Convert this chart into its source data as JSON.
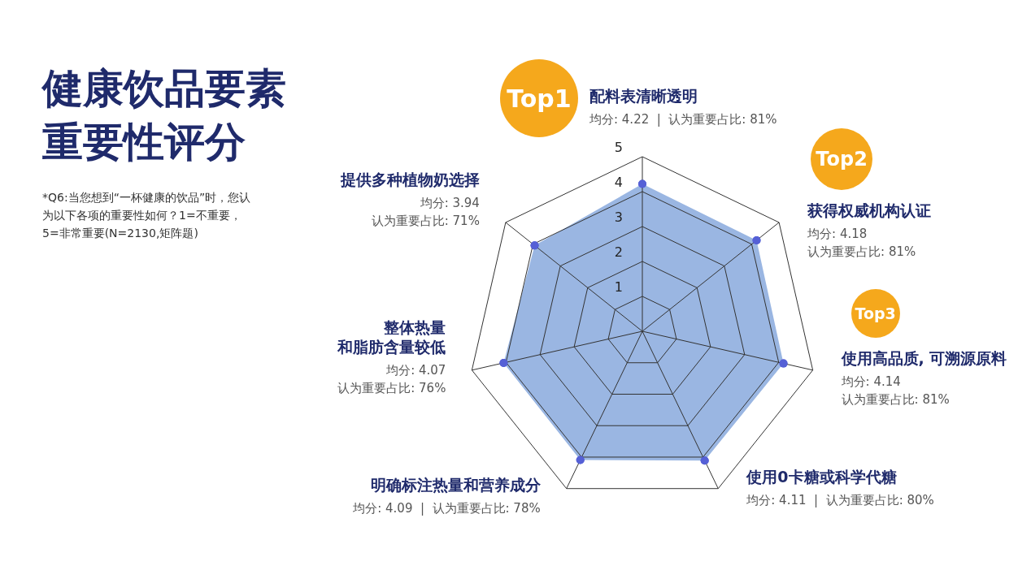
{
  "chart_data": {
    "type": "radar",
    "title": "健康饮品要素重要性评分",
    "categories": [
      "配料表清晰透明",
      "获得权威机构认证",
      "使用高品质, 可溯源原料",
      "使用0卡糖或科学代糖",
      "明确标注热量和营养成分",
      "整体热量和脂肪含量较低",
      "提供多种植物奶选择"
    ],
    "series": [
      {
        "color": "#9ab6e2",
        "values": [
          4.22,
          4.18,
          4.14,
          4.11,
          4.09,
          4.07,
          3.94
        ]
      }
    ],
    "value_labels": [
      "均分: 4.22  |  认为重要占比: 81%",
      "均分: 4.18\n认为重要占比: 81%",
      "均分: 4.14\n认为重要占比: 81%",
      "均分: 4.11  |  认为重要占比: 80%",
      "均分: 4.09  |  认为重要占比: 78%",
      "均分: 4.07\n认为重要占比: 76%",
      "均分: 3.94\n认为重要占比: 71%"
    ],
    "ylim": [
      0,
      5
    ],
    "yticks": [
      1,
      2,
      3,
      4,
      5
    ],
    "grid": true,
    "marker": "circle",
    "legend": false,
    "annotations": [
      "*Q6:当您想到“一杯健康的饮品”时，您认为以下各项的重要性如何？1=不重要，5=非常重要(N=2130,矩阵题)",
      {
        "text": "Top1",
        "x": "配料表清晰透明"
      },
      {
        "text": "Top2",
        "x": "获得权威机构认证"
      },
      {
        "text": "Top3",
        "x": "使用高品质, 可溯源原料"
      }
    ]
  }
}
